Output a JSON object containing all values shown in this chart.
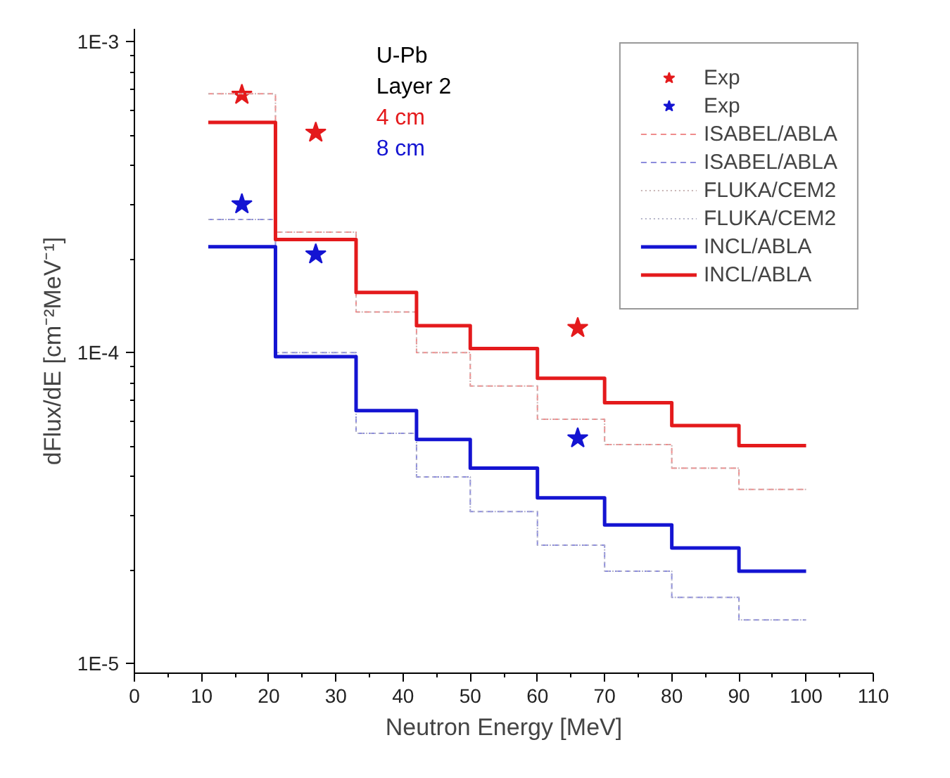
{
  "chart_data": {
    "type": "step",
    "xlabel": "Neutron Energy [MeV]",
    "ylabel": "dFlux/dE [cm⁻²MeV⁻¹]",
    "log": "y",
    "xlim": [
      0,
      110
    ],
    "ylim": [
      9.3e-06,
      0.0011
    ],
    "xticks": [
      0,
      10,
      20,
      30,
      40,
      50,
      60,
      70,
      80,
      90,
      100,
      110
    ],
    "yticks": [
      {
        "value": 1e-05,
        "label": "1E-5"
      },
      {
        "value": 0.0001,
        "label": "1E-4"
      },
      {
        "value": 0.001,
        "label": "1E-3"
      }
    ],
    "grid": false,
    "legend": "top right",
    "annotations": [
      "U-Pb",
      "Layer 2",
      "4 cm",
      "8 cm"
    ],
    "x": [
      11,
      21,
      33,
      42,
      50,
      60,
      70,
      80,
      90,
      100
    ],
    "series": [
      {
        "name": "Exp",
        "type": "scatter",
        "marker": "star",
        "color": "#e41a1c",
        "x": [
          16,
          27,
          66
        ],
        "values": [
          0.000675,
          0.00051,
          0.00012
        ]
      },
      {
        "name": "Exp",
        "type": "scatter",
        "marker": "star",
        "color": "#1414d2",
        "x": [
          16,
          27,
          66
        ],
        "values": [
          0.0003,
          0.000207,
          5.3e-05
        ]
      },
      {
        "name": "ISABEL/ABLA",
        "color": "#f08c8c",
        "line_style": "dashed",
        "values": [
          0.00068,
          0.000244,
          0.000135,
          0.0001,
          7.8e-05,
          6.1e-05,
          5.06e-05,
          4.25e-05,
          3.63e-05,
          3.63e-05
        ]
      },
      {
        "name": "ISABEL/ABLA",
        "color": "#8c8cdc",
        "line_style": "dashed",
        "values": [
          0.000268,
          0.0001,
          5.5e-05,
          3.98e-05,
          3.08e-05,
          2.4e-05,
          1.98e-05,
          1.63e-05,
          1.38e-05,
          1.38e-05
        ]
      },
      {
        "name": "FLUKA/CEM2",
        "color": "#c8b4b4",
        "line_style": "dotted",
        "values": [
          0.00068,
          0.000244,
          0.000135,
          0.0001,
          7.8e-05,
          6.1e-05,
          5.06e-05,
          4.25e-05,
          3.63e-05,
          3.63e-05
        ]
      },
      {
        "name": "FLUKA/CEM2",
        "color": "#b4b4c8",
        "line_style": "dotted",
        "values": [
          0.000268,
          0.0001,
          5.5e-05,
          3.98e-05,
          3.08e-05,
          2.4e-05,
          1.98e-05,
          1.63e-05,
          1.38e-05,
          1.38e-05
        ]
      },
      {
        "name": "INCL/ABLA",
        "color": "#1414d2",
        "line_style": "solid",
        "values": [
          0.000219,
          9.7e-05,
          6.5e-05,
          5.25e-05,
          4.25e-05,
          3.41e-05,
          2.79e-05,
          2.35e-05,
          1.98e-05,
          1.98e-05
        ]
      },
      {
        "name": "INCL/ABLA",
        "color": "#e41a1c",
        "line_style": "solid",
        "values": [
          0.00055,
          0.000231,
          0.000156,
          0.000122,
          0.000103,
          8.26e-05,
          6.9e-05,
          5.82e-05,
          5.02e-05,
          5.02e-05
        ]
      }
    ]
  }
}
